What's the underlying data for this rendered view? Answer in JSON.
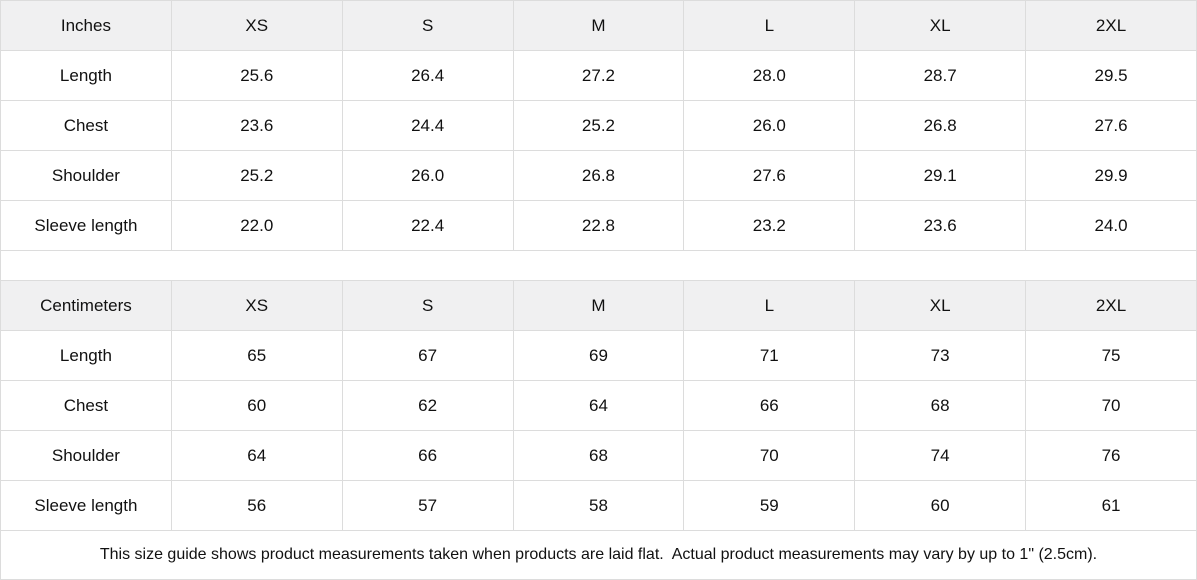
{
  "colors": {
    "header_bg": "#f0f0f1",
    "border": "#dcdcdc",
    "text": "#111111"
  },
  "size_guide": {
    "columns": [
      "XS",
      "S",
      "M",
      "L",
      "XL",
      "2XL"
    ],
    "sections": [
      {
        "unit_label": "Inches",
        "rows": [
          {
            "label": "Length",
            "values": [
              "25.6",
              "26.4",
              "27.2",
              "28.0",
              "28.7",
              "29.5"
            ]
          },
          {
            "label": "Chest",
            "values": [
              "23.6",
              "24.4",
              "25.2",
              "26.0",
              "26.8",
              "27.6"
            ]
          },
          {
            "label": "Shoulder",
            "values": [
              "25.2",
              "26.0",
              "26.8",
              "27.6",
              "29.1",
              "29.9"
            ]
          },
          {
            "label": "Sleeve length",
            "values": [
              "22.0",
              "22.4",
              "22.8",
              "23.2",
              "23.6",
              "24.0"
            ]
          }
        ]
      },
      {
        "unit_label": "Centimeters",
        "rows": [
          {
            "label": "Length",
            "values": [
              "65",
              "67",
              "69",
              "71",
              "73",
              "75"
            ]
          },
          {
            "label": "Chest",
            "values": [
              "60",
              "62",
              "64",
              "66",
              "68",
              "70"
            ]
          },
          {
            "label": "Shoulder",
            "values": [
              "64",
              "66",
              "68",
              "70",
              "74",
              "76"
            ]
          },
          {
            "label": "Sleeve length",
            "values": [
              "56",
              "57",
              "58",
              "59",
              "60",
              "61"
            ]
          }
        ]
      }
    ],
    "footer_note": "This size guide shows product measurements taken when products are laid flat.  Actual product measurements may vary by up to 1\" (2.5cm)."
  }
}
